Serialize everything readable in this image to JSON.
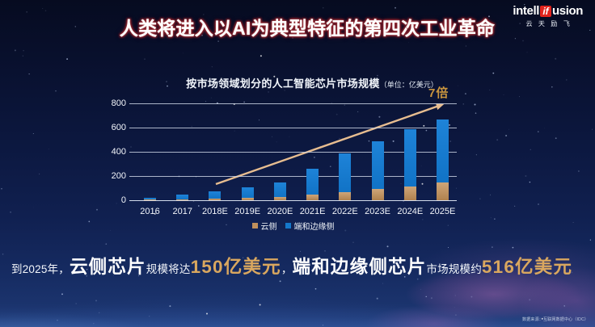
{
  "slide": {
    "title": "人类将进入以AI为典型特征的第四次工业革命",
    "title_text_color": "#ffffff",
    "title_glow_color": "#94232e",
    "background_color": "#0c1840"
  },
  "logo": {
    "brand_prefix": "intell",
    "brand_mid": "if",
    "brand_suffix": "usion",
    "brand_cn": "云天励飞",
    "box_color": "#e2241d"
  },
  "chart": {
    "title": "按市场领域划分的人工智能芯片市场规模",
    "unit_note": "（单位：亿美元）",
    "multiplier_label": "7倍",
    "multiplier_color": "#c9953f"
  },
  "chart_data": {
    "type": "bar",
    "stacked": true,
    "title": "按市场领域划分的人工智能芯片市场规模",
    "unit": "亿美元",
    "categories": [
      "2016",
      "2017",
      "2018E",
      "2019E",
      "2020E",
      "2021E",
      "2022E",
      "2023E",
      "2024E",
      "2025E"
    ],
    "series": [
      {
        "name": "云侧",
        "color": "#c0905c",
        "values": [
          5,
          10,
          14,
          20,
          28,
          48,
          70,
          95,
          115,
          150
        ]
      },
      {
        "name": "端和边缘侧",
        "color": "#1578cb",
        "values": [
          15,
          35,
          57,
          90,
          122,
          212,
          320,
          395,
          475,
          516
        ]
      }
    ],
    "totals": [
      20,
      45,
      71,
      110,
      150,
      260,
      390,
      490,
      590,
      666
    ],
    "yticks": [
      0,
      200,
      400,
      600,
      800
    ],
    "ylim": [
      0,
      800
    ],
    "grid": true,
    "legend_position": "bottom",
    "annotation": {
      "text": "7倍",
      "shape": "arrow",
      "color": "#e7bd90"
    }
  },
  "legend": [
    {
      "label": "云侧",
      "color": "#c0905c"
    },
    {
      "label": "端和边缘侧",
      "color": "#1578cb"
    }
  ],
  "callout": {
    "parts": [
      {
        "text": "到2025年，",
        "style": "small"
      },
      {
        "text": "云侧芯片",
        "style": "big"
      },
      {
        "text": "规模将达",
        "style": "small"
      },
      {
        "text": "150亿美元",
        "style": "big gold"
      },
      {
        "text": "，",
        "style": "small"
      },
      {
        "text": "端和边缘侧芯片",
        "style": "big"
      },
      {
        "text": "市场规模约",
        "style": "small"
      },
      {
        "text": "516亿美元",
        "style": "big gold"
      }
    ],
    "gold_color": "#d9a75f"
  },
  "source_note": "数据来源：互联网数据中心（IDC）"
}
